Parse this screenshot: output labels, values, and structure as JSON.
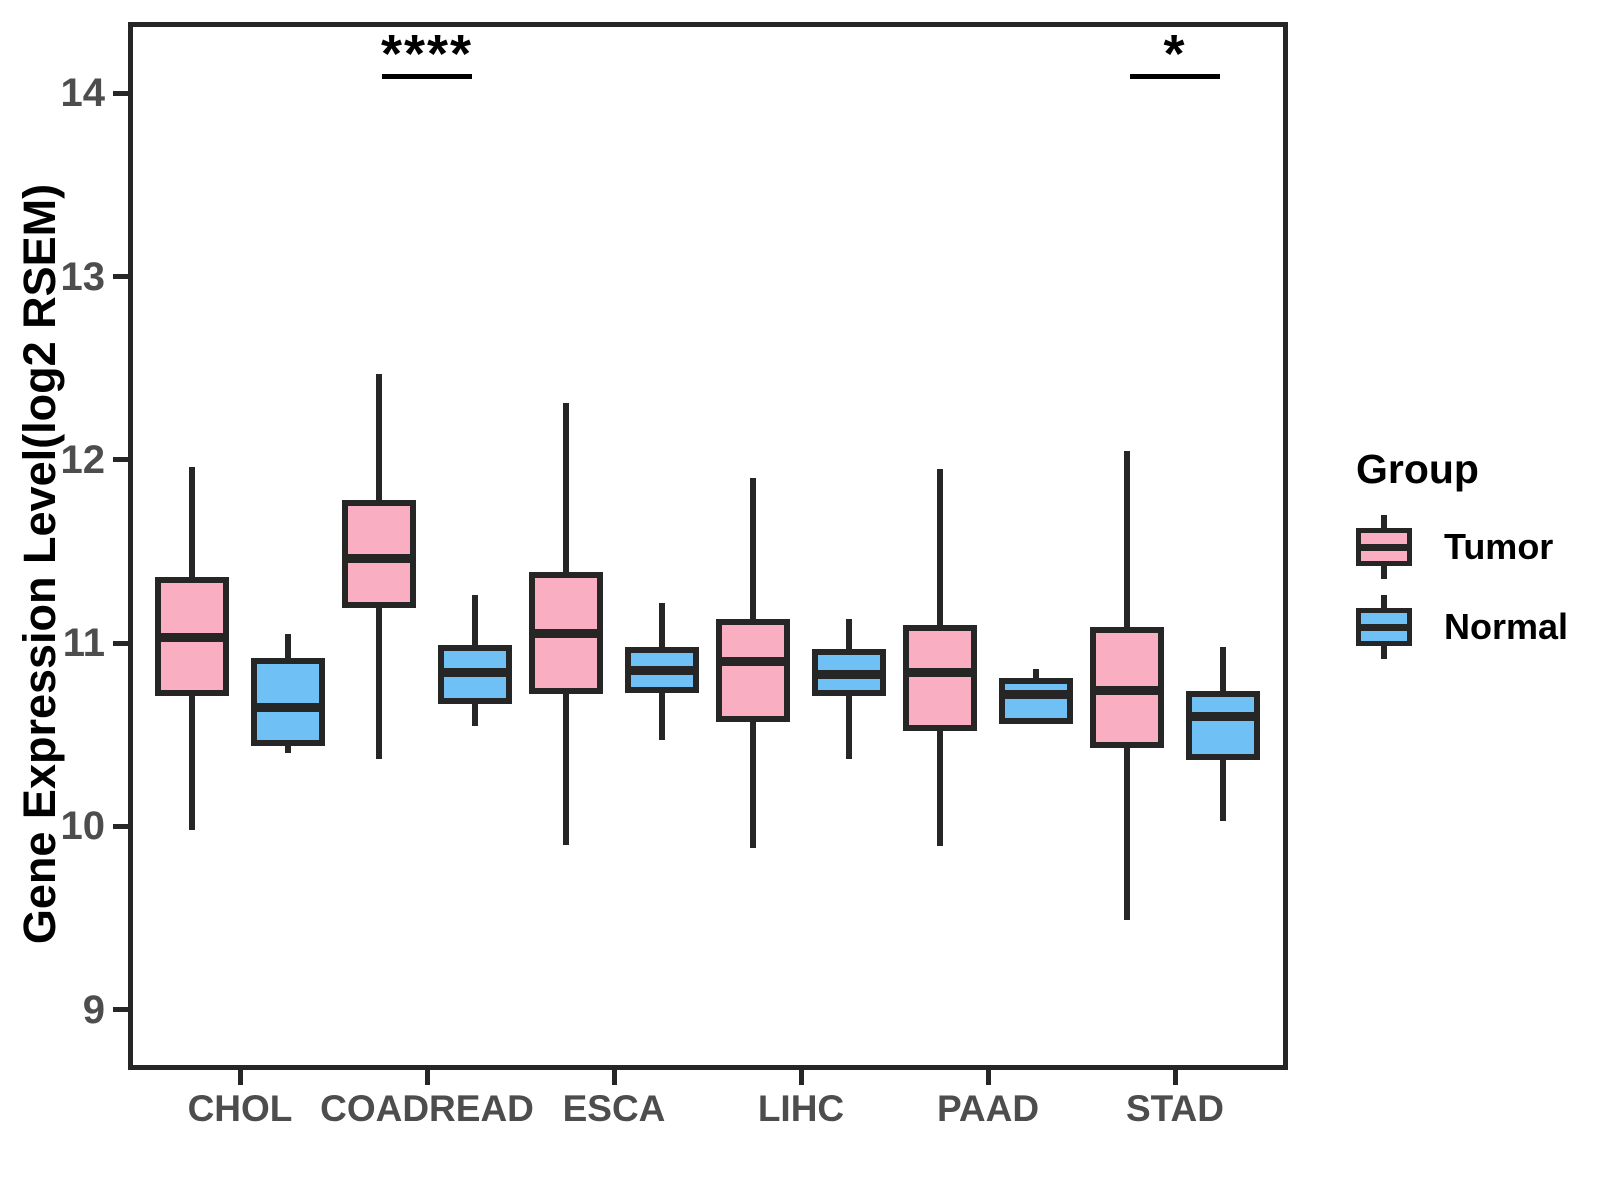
{
  "chart_data": {
    "type": "boxplot",
    "title": "",
    "xlabel": "",
    "ylabel": "Gene Expression Level(log2 RSEM)",
    "ylim": [
      8.67,
      14.39
    ],
    "yticks": [
      9,
      10,
      11,
      12,
      13,
      14
    ],
    "grid": false,
    "legend_position": "right",
    "categories": [
      "CHOL",
      "COADREAD",
      "ESCA",
      "LIHC",
      "PAAD",
      "STAD"
    ],
    "series": [
      {
        "name": "Tumor",
        "color": "#F9AEC2",
        "boxes": [
          {
            "low": 9.98,
            "q1": 10.71,
            "median": 11.03,
            "q3": 11.36,
            "high": 11.96
          },
          {
            "low": 10.37,
            "q1": 11.19,
            "median": 11.46,
            "q3": 11.78,
            "high": 12.47
          },
          {
            "low": 9.9,
            "q1": 10.72,
            "median": 11.05,
            "q3": 11.39,
            "high": 12.31
          },
          {
            "low": 9.88,
            "q1": 10.57,
            "median": 10.9,
            "q3": 11.13,
            "high": 11.9
          },
          {
            "low": 9.89,
            "q1": 10.52,
            "median": 10.84,
            "q3": 11.1,
            "high": 11.95
          },
          {
            "low": 9.49,
            "q1": 10.43,
            "median": 10.74,
            "q3": 11.09,
            "high": 12.05
          }
        ]
      },
      {
        "name": "Normal",
        "color": "#6FC1F5",
        "boxes": [
          {
            "low": 10.4,
            "q1": 10.44,
            "median": 10.65,
            "q3": 10.92,
            "high": 11.05
          },
          {
            "low": 10.55,
            "q1": 10.67,
            "median": 10.84,
            "q3": 10.99,
            "high": 11.26
          },
          {
            "low": 10.47,
            "q1": 10.73,
            "median": 10.85,
            "q3": 10.98,
            "high": 11.22
          },
          {
            "low": 10.37,
            "q1": 10.71,
            "median": 10.83,
            "q3": 10.97,
            "high": 11.13
          },
          {
            "low": 10.56,
            "q1": 10.56,
            "median": 10.72,
            "q3": 10.81,
            "high": 10.86
          },
          {
            "low": 10.03,
            "q1": 10.36,
            "median": 10.6,
            "q3": 10.74,
            "high": 10.98
          }
        ]
      }
    ],
    "significance": [
      {
        "category": "COADREAD",
        "label": "****"
      },
      {
        "category": "STAD",
        "label": "*"
      }
    ],
    "legend": {
      "title": "Group",
      "entries": [
        "Tumor",
        "Normal"
      ]
    },
    "colors": {
      "stroke": "#262626",
      "axis_text": "#4D4D4D",
      "annotation_text": "#000000"
    }
  }
}
